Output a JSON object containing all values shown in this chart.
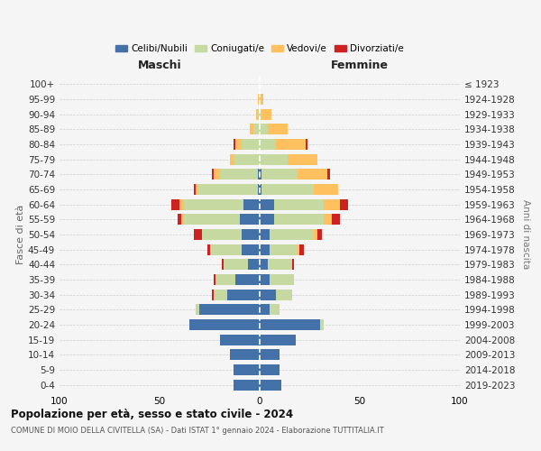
{
  "age_groups": [
    "0-4",
    "5-9",
    "10-14",
    "15-19",
    "20-24",
    "25-29",
    "30-34",
    "35-39",
    "40-44",
    "45-49",
    "50-54",
    "55-59",
    "60-64",
    "65-69",
    "70-74",
    "75-79",
    "80-84",
    "85-89",
    "90-94",
    "95-99",
    "100+"
  ],
  "birth_years": [
    "2019-2023",
    "2014-2018",
    "2009-2013",
    "2004-2008",
    "1999-2003",
    "1994-1998",
    "1989-1993",
    "1984-1988",
    "1979-1983",
    "1974-1978",
    "1969-1973",
    "1964-1968",
    "1959-1963",
    "1954-1958",
    "1949-1953",
    "1944-1948",
    "1939-1943",
    "1934-1938",
    "1929-1933",
    "1924-1928",
    "≤ 1923"
  ],
  "males_celibi": [
    13,
    13,
    15,
    20,
    35,
    30,
    16,
    12,
    6,
    9,
    9,
    10,
    8,
    1,
    1,
    0,
    0,
    0,
    0,
    0,
    0
  ],
  "males_coniugati": [
    0,
    0,
    0,
    0,
    0,
    2,
    7,
    10,
    12,
    16,
    20,
    28,
    30,
    30,
    19,
    13,
    9,
    3,
    1,
    0,
    0
  ],
  "males_vedovi": [
    0,
    0,
    0,
    0,
    0,
    0,
    0,
    0,
    0,
    0,
    0,
    1,
    2,
    1,
    3,
    2,
    3,
    2,
    1,
    1,
    0
  ],
  "males_divorziati": [
    0,
    0,
    0,
    0,
    0,
    0,
    1,
    1,
    1,
    1,
    4,
    2,
    4,
    1,
    1,
    0,
    1,
    0,
    0,
    0,
    0
  ],
  "females_nubili": [
    11,
    10,
    10,
    18,
    30,
    5,
    8,
    5,
    4,
    5,
    5,
    7,
    7,
    1,
    1,
    0,
    0,
    0,
    0,
    0,
    0
  ],
  "females_coniugate": [
    0,
    0,
    0,
    0,
    2,
    5,
    8,
    12,
    12,
    14,
    22,
    25,
    25,
    26,
    18,
    14,
    8,
    4,
    1,
    0,
    0
  ],
  "females_vedove": [
    0,
    0,
    0,
    0,
    0,
    0,
    0,
    0,
    0,
    1,
    2,
    4,
    8,
    12,
    15,
    15,
    15,
    10,
    5,
    2,
    0
  ],
  "females_divorziate": [
    0,
    0,
    0,
    0,
    0,
    0,
    0,
    0,
    1,
    2,
    2,
    4,
    4,
    0,
    1,
    0,
    1,
    0,
    0,
    0,
    0
  ],
  "color_celibi": "#4472a8",
  "color_coniugati": "#c5d9a0",
  "color_vedovi": "#ffc060",
  "color_divorziati": "#cc2222",
  "legend_labels": [
    "Celibi/Nubili",
    "Coniugati/e",
    "Vedovi/e",
    "Divorziati/e"
  ],
  "title": "Popolazione per età, sesso e stato civile - 2024",
  "subtitle": "COMUNE DI MOIO DELLA CIVITELLA (SA) - Dati ISTAT 1° gennaio 2024 - Elaborazione TUTTITALIA.IT",
  "label_maschi": "Maschi",
  "label_femmine": "Femmine",
  "label_fasce": "Fasce di età",
  "label_anni": "Anni di nascita",
  "xlim": 100,
  "bg_color": "#f5f5f5"
}
